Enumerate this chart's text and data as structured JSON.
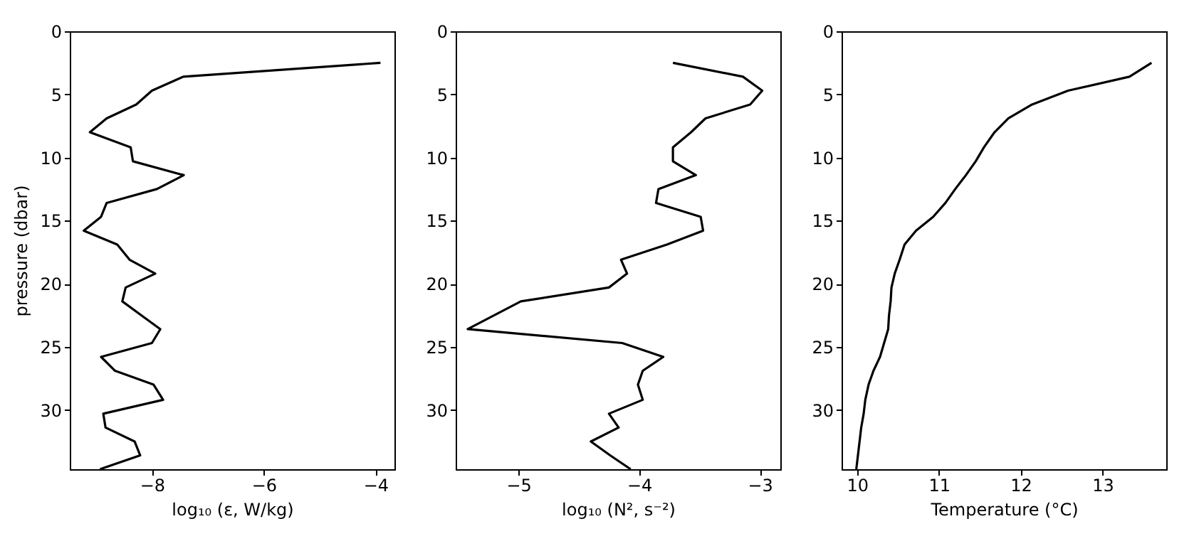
{
  "chart_data": [
    {
      "type": "line",
      "xlabel": "log₁₀ (ε, W/kg)",
      "ylabel": "pressure (dbar)",
      "color": "#000000",
      "grid": false,
      "x": [
        -3.91,
        -7.44,
        -8.0,
        -8.28,
        -8.81,
        -9.11,
        -8.38,
        -8.34,
        -7.43,
        -7.91,
        -8.81,
        -8.91,
        -9.22,
        -8.62,
        -8.4,
        -7.94,
        -8.47,
        -8.53,
        -8.19,
        -7.85,
        -8.0,
        -8.91,
        -8.66,
        -7.97,
        -7.8,
        -8.87,
        -8.83,
        -8.31,
        -8.21,
        -8.93
      ],
      "values": [
        2.5,
        3.6,
        4.7,
        5.8,
        6.9,
        8.0,
        9.2,
        10.3,
        11.4,
        12.5,
        13.6,
        14.7,
        15.8,
        16.9,
        18.1,
        19.2,
        20.3,
        21.4,
        22.5,
        23.6,
        24.7,
        25.8,
        26.9,
        28.0,
        29.2,
        30.3,
        31.4,
        32.5,
        33.6,
        34.7
      ],
      "xlim": [
        -9.47,
        -3.66
      ],
      "xticks": [
        -8,
        -6,
        -4
      ],
      "ylim": [
        34.7,
        0
      ],
      "yticks": [
        0,
        5,
        10,
        15,
        20,
        25,
        30
      ]
    },
    {
      "type": "line",
      "xlabel": "log₁₀ (N², s⁻²)",
      "color": "#000000",
      "grid": false,
      "x": [
        -3.72,
        -3.14,
        -2.98,
        -3.08,
        -3.45,
        -3.57,
        -3.72,
        -3.72,
        -3.53,
        -3.84,
        -3.86,
        -3.49,
        -3.47,
        -3.77,
        -4.15,
        -4.1,
        -4.25,
        -4.98,
        -5.2,
        -5.42,
        -4.14,
        -3.8,
        -3.97,
        -4.01,
        -3.97,
        -4.25,
        -4.17,
        -4.4,
        -4.24,
        -4.07
      ],
      "values": [
        2.5,
        3.6,
        4.7,
        5.8,
        6.9,
        8.0,
        9.2,
        10.3,
        11.4,
        12.5,
        13.6,
        14.7,
        15.8,
        16.9,
        18.1,
        19.2,
        20.3,
        21.4,
        22.5,
        23.6,
        24.7,
        25.8,
        26.9,
        28.0,
        29.2,
        30.3,
        31.4,
        32.5,
        33.6,
        34.7
      ],
      "xlim": [
        -5.52,
        -2.83
      ],
      "xticks": [
        -5,
        -4,
        -3
      ],
      "ylim": [
        34.7,
        0
      ],
      "yticks": [
        0,
        5,
        10,
        15,
        20,
        25,
        30
      ]
    },
    {
      "type": "line",
      "xlabel": "Temperature (°C)",
      "color": "#000000",
      "grid": false,
      "x": [
        13.6,
        13.33,
        12.58,
        12.14,
        11.85,
        11.68,
        11.55,
        11.45,
        11.33,
        11.2,
        11.08,
        10.93,
        10.72,
        10.58,
        10.52,
        10.46,
        10.42,
        10.41,
        10.39,
        10.38,
        10.33,
        10.28,
        10.2,
        10.14,
        10.1,
        10.08,
        10.05,
        10.03,
        10.01,
        9.99
      ],
      "values": [
        2.5,
        3.6,
        4.7,
        5.8,
        6.9,
        8.0,
        9.2,
        10.3,
        11.4,
        12.5,
        13.6,
        14.7,
        15.8,
        16.9,
        18.1,
        19.2,
        20.3,
        21.4,
        22.5,
        23.6,
        24.7,
        25.8,
        26.9,
        28.0,
        29.2,
        30.3,
        31.4,
        32.5,
        33.6,
        34.7
      ],
      "xlim": [
        9.81,
        13.78
      ],
      "xticks": [
        10,
        11,
        12,
        13
      ],
      "ylim": [
        34.7,
        0
      ],
      "yticks": [
        0,
        5,
        10,
        15,
        20,
        25,
        30
      ]
    }
  ]
}
